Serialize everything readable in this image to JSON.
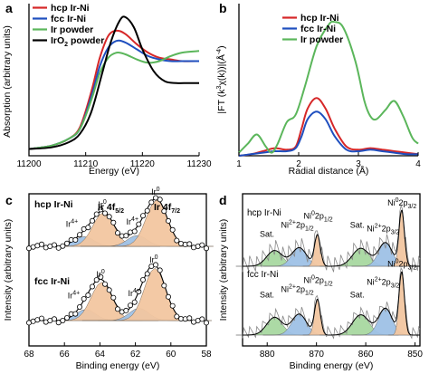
{
  "chart_data": [
    {
      "panel": "a",
      "type": "line",
      "xlabel": "Energy (eV)",
      "ylabel": "Absorption (arbitrary units)",
      "xlim": [
        11200,
        11230
      ],
      "xticks": [
        "11200",
        "11210",
        "11220",
        "11230"
      ],
      "legend_position": "top-left",
      "series": [
        {
          "name": "hcp Ir-Ni",
          "color": "#d62728",
          "x": [
            11200,
            11204,
            11207,
            11209,
            11211,
            11212.5,
            11214,
            11215.5,
            11217,
            11219,
            11221,
            11223,
            11225,
            11227,
            11230
          ],
          "y": [
            0.04,
            0.06,
            0.1,
            0.17,
            0.38,
            0.58,
            0.71,
            0.74,
            0.72,
            0.66,
            0.61,
            0.58,
            0.57,
            0.56,
            0.56
          ]
        },
        {
          "name": "fcc Ir-Ni",
          "color": "#1f4fbf",
          "x": [
            11200,
            11204,
            11207,
            11209,
            11211,
            11212.5,
            11214,
            11215.5,
            11217,
            11219,
            11221,
            11223,
            11225,
            11227,
            11230
          ],
          "y": [
            0.04,
            0.06,
            0.1,
            0.16,
            0.35,
            0.53,
            0.64,
            0.68,
            0.67,
            0.63,
            0.59,
            0.57,
            0.56,
            0.56,
            0.56
          ]
        },
        {
          "name": "Ir powder",
          "color": "#5bb65b",
          "x": [
            11200,
            11204,
            11207,
            11209,
            11211,
            11212.5,
            11214,
            11215.5,
            11217,
            11219,
            11221,
            11223,
            11225,
            11227,
            11230
          ],
          "y": [
            0.04,
            0.06,
            0.1,
            0.16,
            0.33,
            0.49,
            0.58,
            0.61,
            0.6,
            0.57,
            0.55,
            0.56,
            0.59,
            0.61,
            0.62
          ]
        },
        {
          "name": "IrO2 powder",
          "color": "#000000",
          "x": [
            11200,
            11204,
            11207,
            11209,
            11211,
            11213,
            11214.5,
            11216,
            11217,
            11218.5,
            11220,
            11222,
            11224,
            11226,
            11228,
            11230
          ],
          "y": [
            0.04,
            0.05,
            0.08,
            0.13,
            0.26,
            0.5,
            0.68,
            0.8,
            0.82,
            0.76,
            0.63,
            0.5,
            0.44,
            0.43,
            0.43,
            0.43
          ]
        }
      ]
    },
    {
      "panel": "b",
      "type": "line",
      "xlabel": "Radial distance (Å)",
      "ylabel": "|FT (k3χ(k))|(Å-4)",
      "xlim": [
        1,
        4
      ],
      "xticks": [
        "1",
        "2",
        "3",
        "4"
      ],
      "legend_position": "top-left",
      "series": [
        {
          "name": "hcp Ir-Ni",
          "color": "#d62728",
          "x": [
            1.0,
            1.2,
            1.4,
            1.6,
            1.8,
            1.95,
            2.05,
            2.15,
            2.3,
            2.45,
            2.6,
            2.8,
            3.0,
            3.2,
            3.4,
            3.6,
            3.8,
            4.0
          ],
          "y": [
            0.0,
            0.01,
            0.03,
            0.05,
            0.04,
            0.06,
            0.18,
            0.31,
            0.38,
            0.31,
            0.18,
            0.06,
            0.04,
            0.05,
            0.04,
            0.03,
            0.02,
            0.01
          ]
        },
        {
          "name": "fcc Ir-Ni",
          "color": "#1f4fbf",
          "x": [
            1.0,
            1.2,
            1.4,
            1.6,
            1.8,
            1.95,
            2.05,
            2.15,
            2.3,
            2.45,
            2.6,
            2.8,
            3.0,
            3.2,
            3.4,
            3.6,
            3.8,
            4.0
          ],
          "y": [
            0.0,
            0.01,
            0.02,
            0.03,
            0.03,
            0.05,
            0.13,
            0.24,
            0.29,
            0.24,
            0.13,
            0.04,
            0.03,
            0.04,
            0.03,
            0.02,
            0.01,
            0.01
          ]
        },
        {
          "name": "Ir powder",
          "color": "#5bb65b",
          "x": [
            1.0,
            1.15,
            1.3,
            1.45,
            1.55,
            1.65,
            1.8,
            1.95,
            2.1,
            2.3,
            2.5,
            2.6,
            2.75,
            2.95,
            3.1,
            3.2,
            3.3,
            3.45,
            3.6,
            3.75,
            3.9,
            4.0
          ],
          "y": [
            0.02,
            0.08,
            0.14,
            0.06,
            0.02,
            0.08,
            0.22,
            0.27,
            0.45,
            0.72,
            0.86,
            0.88,
            0.84,
            0.62,
            0.36,
            0.26,
            0.24,
            0.3,
            0.36,
            0.26,
            0.12,
            0.08
          ]
        }
      ]
    },
    {
      "panel": "c",
      "type": "line",
      "xlabel": "Binding energy (eV)",
      "ylabel": "Intensity (arbitrary units)",
      "xlim": [
        68,
        58
      ],
      "xticks": [
        "68",
        "66",
        "64",
        "62",
        "60",
        "58"
      ],
      "peak_labels": {
        "ir4f52": "Ir 4f",
        "ir4f52_sub": "5/2",
        "ir4f72": "Ir 4f",
        "ir4f72_sub": "7/2",
        "ir0": "Ir",
        "ir0_sup": "0",
        "ir4plus": "Ir",
        "ir4plus_sup": "4+"
      },
      "fill_colors": {
        "ir0": "#f2c6a0",
        "ir4plus": "#9ec1e6"
      },
      "series": [
        {
          "name": "hcp Ir-Ni",
          "ir0_peaks_ev": [
            63.8,
            60.8
          ],
          "ir4plus_peaks_ev": [
            64.9,
            61.9
          ]
        },
        {
          "name": "fcc Ir-Ni",
          "ir0_peaks_ev": [
            63.9,
            60.9
          ],
          "ir4plus_peaks_ev": [
            64.8,
            61.8
          ]
        }
      ]
    },
    {
      "panel": "d",
      "type": "line",
      "xlabel": "Binding energy (eV)",
      "ylabel": "Intensity (arbitrary units)",
      "xlim": [
        885,
        849
      ],
      "xticks": [
        "880",
        "870",
        "860",
        "850"
      ],
      "peak_labels": {
        "sat": "Sat.",
        "ni2p12_pre": "Ni",
        "ni2p12_sup": "2+",
        "ni2p12_mid": "2p",
        "ni2p12_sub": "1/2",
        "ni0p12_pre": "Ni",
        "ni0p12_sup": "0",
        "ni0p12_mid": "2p",
        "ni0p12_sub": "1/2",
        "ni2p32_pre": "Ni",
        "ni2p32_sup": "2+",
        "ni2p32_mid": "2p",
        "ni2p32_sub": "3/2",
        "ni0p32_pre": "Ni",
        "ni0p32_sup": "0",
        "ni0p32_mid": "2p",
        "ni0p32_sub": "3/2"
      },
      "fill_colors": {
        "ni0": "#f2c6a0",
        "ni2plus": "#9ec1e6",
        "sat": "#a8d8a0"
      },
      "series": [
        {
          "name": "hcp Ir-Ni"
        },
        {
          "name": "fcc Ir-Ni"
        }
      ]
    }
  ]
}
